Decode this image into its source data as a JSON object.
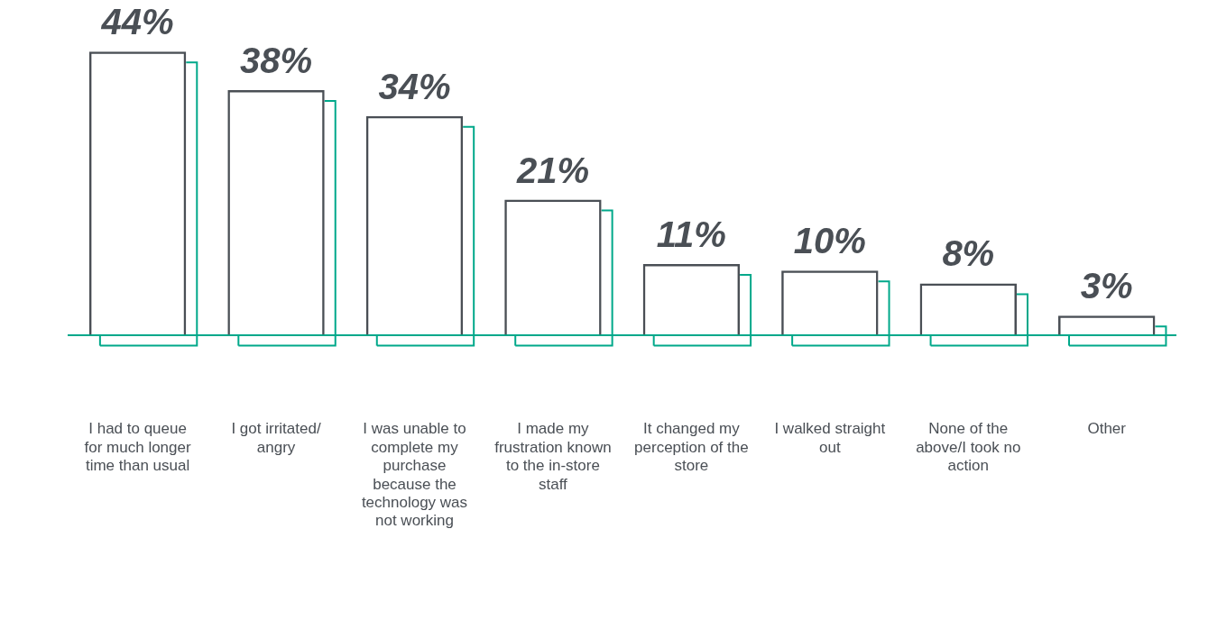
{
  "chart_data": {
    "type": "bar",
    "categories": [
      "I had to queue for much longer time than usual",
      "I got irritated/ angry",
      "I was unable to complete my purchase because the technology was not working",
      "I made my frustration known to the in-store staff",
      "It changed my perception of the store",
      "I walked straight out",
      "None of the above/I took no action",
      "Other"
    ],
    "values": [
      44,
      38,
      34,
      21,
      11,
      10,
      8,
      3
    ],
    "color": "#4a4f55",
    "value_labels": [
      "44%",
      "38%",
      "34%",
      "21%",
      "11%",
      "10%",
      "8%",
      "3%"
    ],
    "grid": false,
    "legend": false,
    "tick_labels": "x"
  }
}
